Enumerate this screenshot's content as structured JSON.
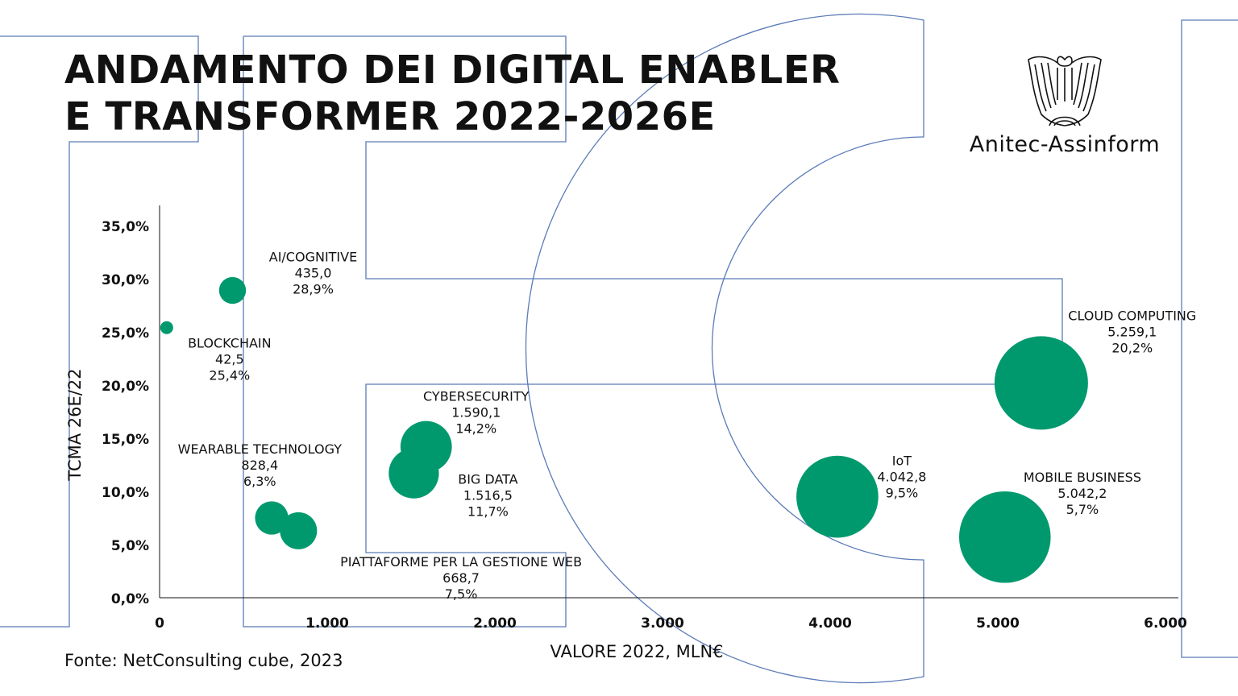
{
  "title": {
    "line1": "ANDAMENTO DEI DIGITAL ENABLER",
    "line2": "E TRANSFORMER 2022-2026E"
  },
  "logo": {
    "text": "Anitec-Assinform",
    "icon": "eagle-emblem-icon"
  },
  "source": "Fonte: NetConsulting cube, 2023",
  "colors": {
    "bubble": "#00996e",
    "background_outline": "#5b7bb8",
    "text": "#111111"
  },
  "chart_data": {
    "type": "bubble",
    "title": "ANDAMENTO DEI DIGITAL ENABLER E TRANSFORMER 2022-2026E",
    "xlabel": "VALORE 2022, MLN€",
    "ylabel": "TCMA 26E/22",
    "xlim": [
      0,
      6000
    ],
    "ylim": [
      0,
      35
    ],
    "x_ticks": [
      "0",
      "1.000",
      "2.000",
      "3.000",
      "4.000",
      "5.000",
      "6.000"
    ],
    "y_ticks": [
      "0,0%",
      "5,0%",
      "10,0%",
      "15,0%",
      "20,0%",
      "25,0%",
      "30,0%",
      "35,0%"
    ],
    "grid": false,
    "points": [
      {
        "name": "AI/COGNITIVE",
        "x": 435.0,
        "y": 28.9,
        "value_label": "435,0",
        "pct_label": "28,9%"
      },
      {
        "name": "BLOCKCHAIN",
        "x": 42.5,
        "y": 25.4,
        "value_label": "42,5",
        "pct_label": "25,4%"
      },
      {
        "name": "CYBERSECURITY",
        "x": 1590.1,
        "y": 14.2,
        "value_label": "1.590,1",
        "pct_label": "14,2%"
      },
      {
        "name": "BIG DATA",
        "x": 1516.5,
        "y": 11.7,
        "value_label": "1.516,5",
        "pct_label": "11,7%"
      },
      {
        "name": "WEARABLE TECHNOLOGY",
        "x": 828.4,
        "y": 6.3,
        "value_label": "828,4",
        "pct_label": "6,3%"
      },
      {
        "name": "PIATTAFORME PER LA GESTIONE WEB",
        "x": 668.7,
        "y": 7.5,
        "value_label": "668,7",
        "pct_label": "7,5%"
      },
      {
        "name": "IoT",
        "x": 4042.8,
        "y": 9.5,
        "value_label": "4.042,8",
        "pct_label": "9,5%"
      },
      {
        "name": "CLOUD COMPUTING",
        "x": 5259.1,
        "y": 20.2,
        "value_label": "5.259,1",
        "pct_label": "20,2%"
      },
      {
        "name": "MOBILE BUSINESS",
        "x": 5042.2,
        "y": 5.7,
        "value_label": "5.042,2",
        "pct_label": "5,7%"
      }
    ]
  }
}
